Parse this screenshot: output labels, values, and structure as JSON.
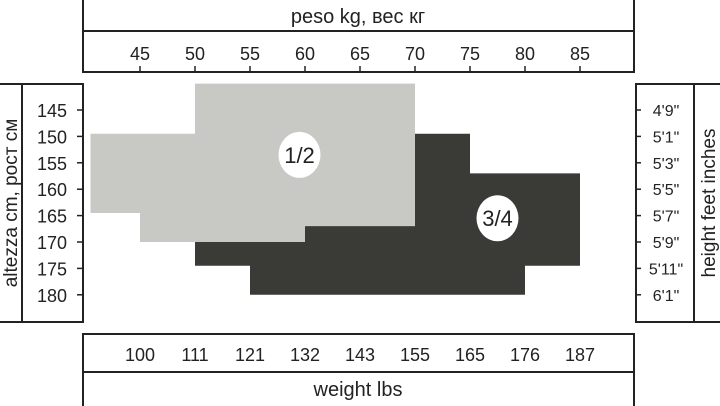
{
  "chart_data": {
    "type": "area",
    "top_axis": {
      "label": "peso kg, вес кг",
      "ticks": [
        "45",
        "50",
        "55",
        "60",
        "65",
        "70",
        "75",
        "80",
        "85"
      ],
      "values": [
        45,
        50,
        55,
        60,
        65,
        70,
        75,
        80,
        85
      ]
    },
    "bottom_axis": {
      "label": "weight lbs",
      "ticks": [
        "100",
        "111",
        "121",
        "132",
        "143",
        "155",
        "165",
        "176",
        "187"
      ]
    },
    "left_axis": {
      "label": "altezza cm, рост см",
      "ticks": [
        "145",
        "150",
        "155",
        "160",
        "165",
        "170",
        "175",
        "180"
      ],
      "values": [
        145,
        150,
        155,
        160,
        165,
        170,
        175,
        180
      ]
    },
    "right_axis": {
      "label": "height feet inches",
      "ticks": [
        "4'9\"",
        "5'1\"",
        "5'3\"",
        "5'5\"",
        "5'7\"",
        "5'9\"",
        "5'11\"",
        "6'1\""
      ]
    },
    "regions": [
      {
        "name": "1/2",
        "color": "#c8c8c4",
        "label_at": [
          59.5,
          153.5
        ],
        "polygon_kg_cm": [
          [
            50,
            140
          ],
          [
            70,
            140
          ],
          [
            70,
            167
          ],
          [
            60,
            167
          ],
          [
            60,
            170
          ],
          [
            45,
            170
          ],
          [
            45,
            164.5
          ],
          [
            40.5,
            164.5
          ],
          [
            40.5,
            149.5
          ],
          [
            50,
            149.5
          ]
        ]
      },
      {
        "name": "3/4",
        "color": "#3a3a36",
        "label_at": [
          77.5,
          165.5
        ],
        "polygon_kg_cm": [
          [
            70,
            149.5
          ],
          [
            75,
            149.5
          ],
          [
            75,
            157
          ],
          [
            85,
            157
          ],
          [
            85,
            174.5
          ],
          [
            80,
            174.5
          ],
          [
            80,
            180
          ],
          [
            55,
            180
          ],
          [
            55,
            174.5
          ],
          [
            50,
            174.5
          ],
          [
            50,
            170
          ],
          [
            60,
            170
          ],
          [
            60,
            167
          ],
          [
            70,
            167
          ]
        ]
      }
    ]
  }
}
